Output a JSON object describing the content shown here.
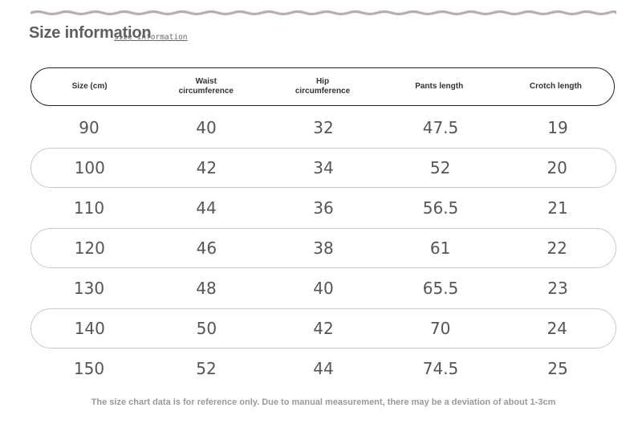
{
  "title": "Size information",
  "subtitle": "Size information",
  "columns": [
    "Size (cm)",
    "Waist\ncircumference",
    "Hip\ncircumference",
    "Pants length",
    "Crotch length"
  ],
  "rows": [
    [
      "90",
      "40",
      "32",
      "47.5",
      "19"
    ],
    [
      "100",
      "42",
      "34",
      "52",
      "20"
    ],
    [
      "110",
      "44",
      "36",
      "56.5",
      "21"
    ],
    [
      "120",
      "46",
      "38",
      "61",
      "22"
    ],
    [
      "130",
      "48",
      "40",
      "65.5",
      "23"
    ],
    [
      "140",
      "50",
      "42",
      "70",
      "24"
    ],
    [
      "150",
      "52",
      "44",
      "74.5",
      "25"
    ]
  ],
  "footnote": "The size chart data is for reference only. Due to manual measurement, there may be a deviation of about 1-3cm"
}
